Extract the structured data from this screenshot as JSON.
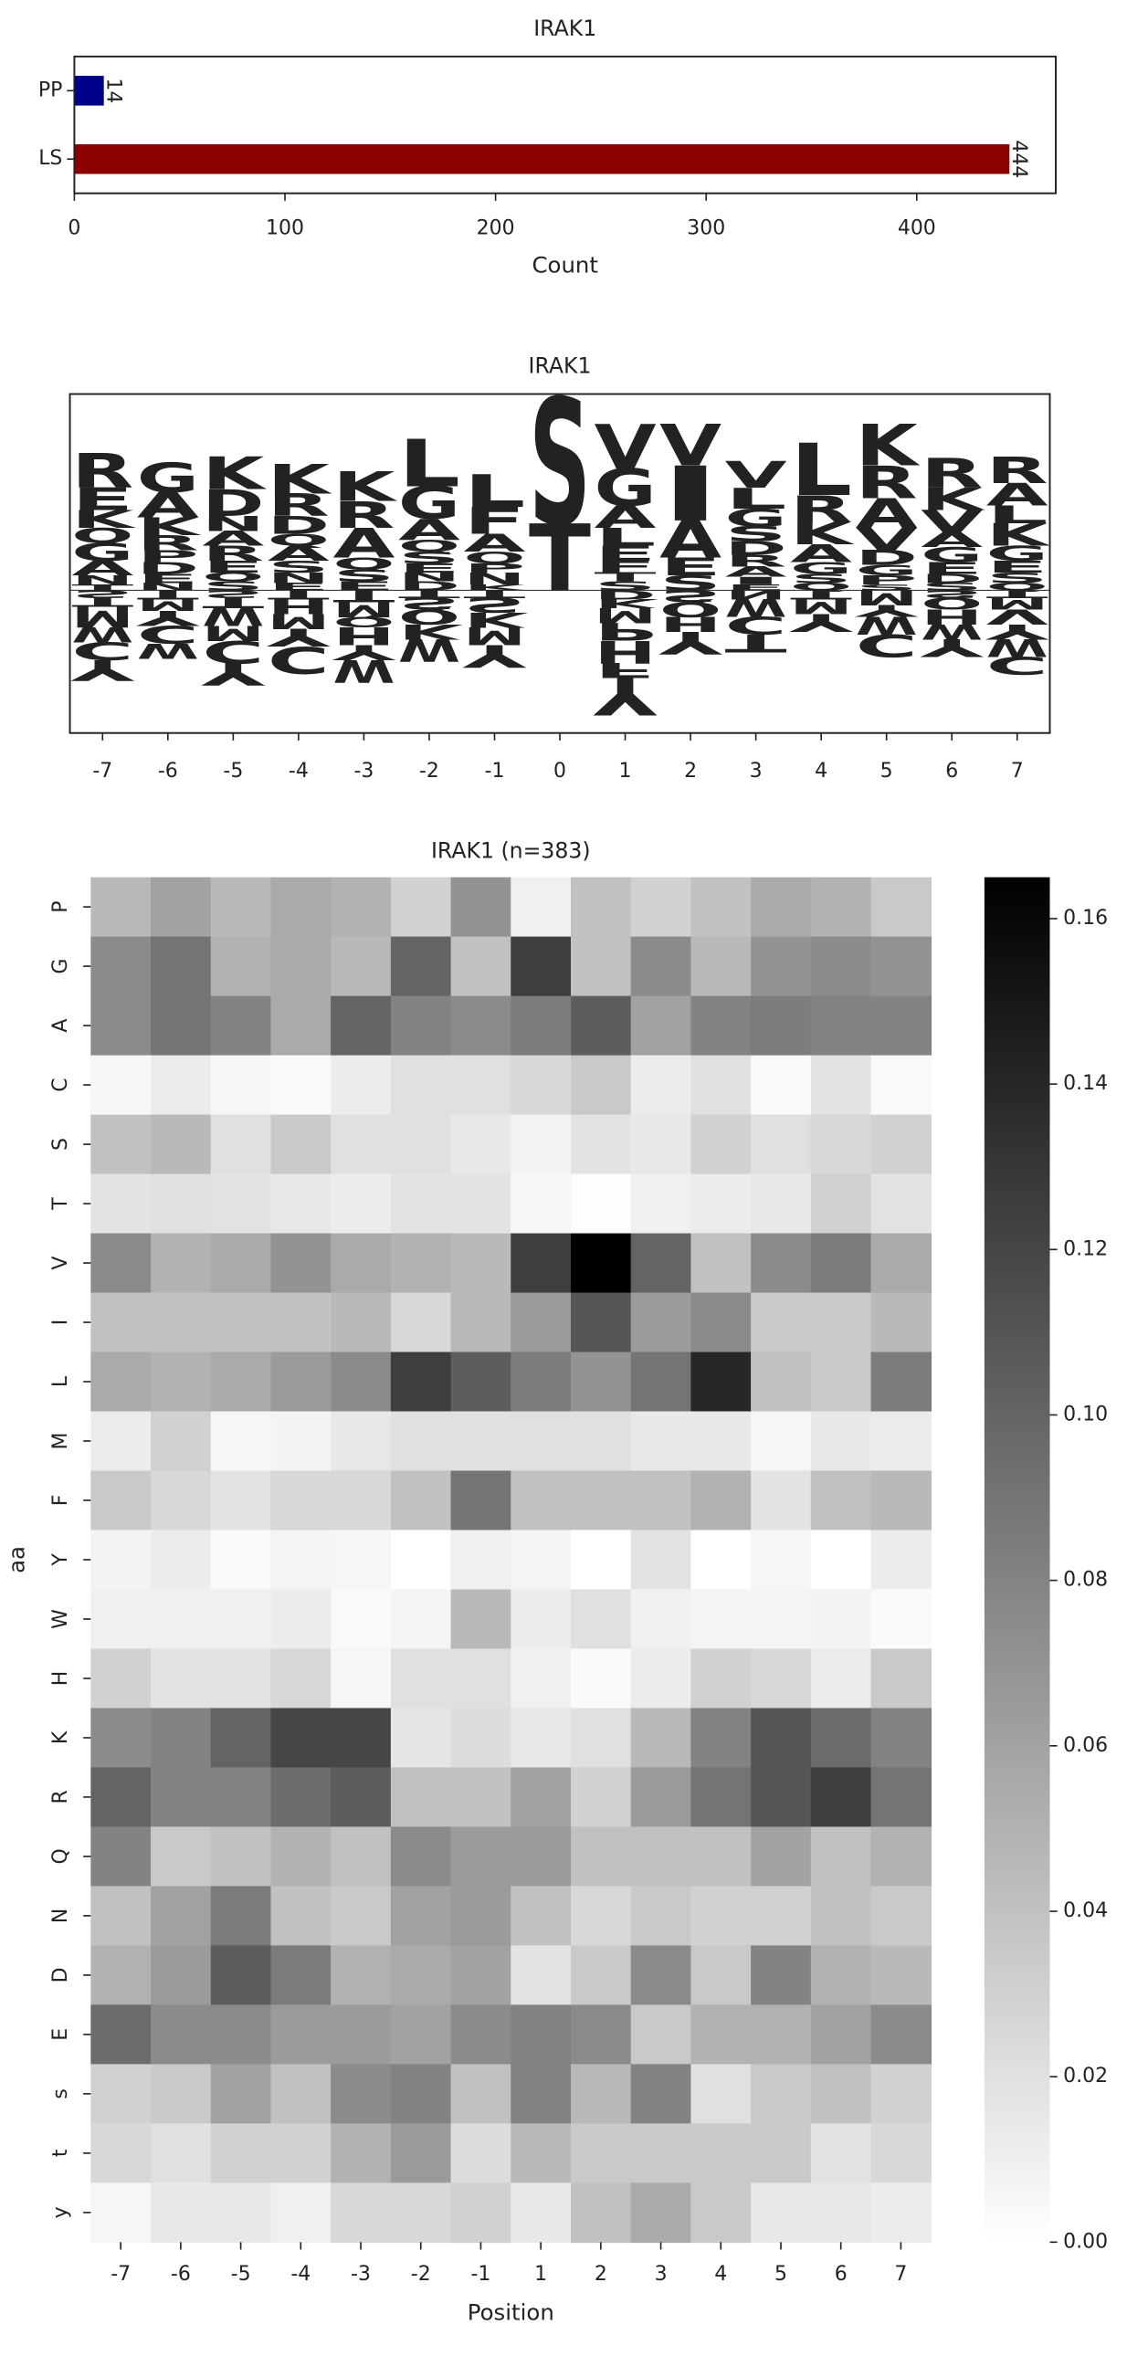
{
  "chart_data": [
    {
      "type": "bar",
      "orientation": "horizontal",
      "title": "IRAK1",
      "categories": [
        "PP",
        "LS"
      ],
      "values": [
        14,
        444
      ],
      "colors": [
        "#00008b",
        "#8b0000"
      ],
      "xlabel": "Count",
      "xlim": [
        0,
        466
      ],
      "xticks": [
        0,
        100,
        200,
        300,
        400
      ]
    },
    {
      "type": "logo",
      "title": "IRAK1",
      "categories": [
        -7,
        -6,
        -5,
        -4,
        -3,
        -2,
        -1,
        0,
        1,
        2,
        3,
        4,
        5,
        6,
        7
      ],
      "ylim": [
        -0.96,
        1.32
      ],
      "letter_colors": {
        "K": "#0000ff",
        "R": "#0000ff",
        "D": "#dc143c",
        "E": "#dc143c",
        "G": "#008000",
        "A": "#008000",
        "S": "#8b008b",
        "T": "#8b008b",
        "N": "#8b008b",
        "Q": "#8b008b",
        "H": "#8b008b",
        "V": "#daa520",
        "L": "#daa520",
        "I": "#daa520",
        "M": "#daa520",
        "F": "#daa520",
        "C": "#daa520",
        "W": "#8b4513",
        "Y": "#8b4513",
        "P": "#000000"
      },
      "stacks": [
        {
          "letters": [
            "T",
            "N",
            "A",
            "G",
            "Q",
            "K",
            "E",
            "R",
            "S",
            "T",
            "M",
            "W",
            "C",
            "Y"
          ],
          "heights": [
            0.04,
            0.06,
            0.1,
            0.12,
            0.1,
            0.12,
            0.15,
            0.23,
            -0.05,
            -0.06,
            -0.14,
            -0.1,
            -0.12,
            -0.14
          ]
        },
        {
          "letters": [
            "N",
            "E",
            "D",
            "P",
            "R",
            "K",
            "A",
            "G",
            "T",
            "M",
            "Y",
            "C",
            "W"
          ],
          "heights": [
            0.05,
            0.06,
            0.08,
            0.08,
            0.1,
            0.12,
            0.17,
            0.2,
            -0.06,
            -0.08,
            -0.1,
            -0.12,
            -0.1
          ]
        },
        {
          "letters": [
            "S",
            "Q",
            "E",
            "R",
            "A",
            "N",
            "D",
            "K",
            "S",
            "T",
            "W",
            "M",
            "C",
            "Y"
          ],
          "heights": [
            0.06,
            0.06,
            0.08,
            0.1,
            0.1,
            0.1,
            0.18,
            0.22,
            -0.05,
            -0.07,
            -0.12,
            -0.1,
            -0.15,
            -0.15
          ]
        },
        {
          "letters": [
            "E",
            "N",
            "S",
            "A",
            "Q",
            "D",
            "R",
            "K",
            "T",
            "H",
            "M",
            "Y",
            "C"
          ],
          "heights": [
            0.05,
            0.07,
            0.08,
            0.1,
            0.08,
            0.12,
            0.15,
            0.2,
            -0.06,
            -0.1,
            -0.1,
            -0.12,
            -0.18
          ]
        },
        {
          "letters": [
            "E",
            "S",
            "Q",
            "A",
            "R",
            "K",
            "T",
            "M",
            "Q",
            "H",
            "Y",
            "W"
          ],
          "heights": [
            0.06,
            0.08,
            0.08,
            0.2,
            0.18,
            0.2,
            -0.08,
            -0.1,
            -0.07,
            -0.12,
            -0.1,
            -0.15
          ]
        },
        {
          "letters": [
            "D",
            "N",
            "E",
            "S",
            "Q",
            "A",
            "G",
            "L",
            "T",
            "S",
            "Q",
            "K",
            "W"
          ],
          "heights": [
            0.06,
            0.06,
            0.06,
            0.08,
            0.08,
            0.14,
            0.22,
            0.32,
            -0.05,
            -0.08,
            -0.1,
            -0.1,
            -0.15
          ]
        },
        {
          "letters": [
            "K",
            "N",
            "P",
            "Q",
            "A",
            "F",
            "L",
            "T",
            "S",
            "K",
            "M",
            "Y"
          ],
          "heights": [
            0.04,
            0.08,
            0.06,
            0.08,
            0.12,
            0.18,
            0.22,
            -0.05,
            -0.1,
            -0.1,
            -0.12,
            -0.15
          ]
        },
        {
          "letters": [
            "T",
            "S"
          ],
          "heights": [
            0.45,
            0.85
          ]
        },
        {
          "letters": [
            "S",
            "T",
            "F",
            "E",
            "L",
            "A",
            "G",
            "V",
            "D",
            "K",
            "M",
            "P",
            "H",
            "F",
            "Y"
          ],
          "heights": [
            0.06,
            0.06,
            0.08,
            0.1,
            0.12,
            0.15,
            0.25,
            0.3,
            -0.06,
            -0.06,
            -0.1,
            -0.12,
            -0.15,
            -0.1,
            -0.25
          ]
        },
        {
          "letters": [
            "S",
            "E",
            "A",
            "I",
            "V",
            "S",
            "Q",
            "H",
            "Y"
          ],
          "heights": [
            0.1,
            0.12,
            0.25,
            0.37,
            0.28,
            -0.08,
            -0.1,
            -0.1,
            -0.15
          ]
        },
        {
          "letters": [
            "E",
            "I",
            "A",
            "R",
            "D",
            "S",
            "G",
            "L",
            "V",
            "N",
            "W",
            "C",
            "T"
          ],
          "heights": [
            0.04,
            0.05,
            0.07,
            0.08,
            0.09,
            0.1,
            0.12,
            0.14,
            0.18,
            -0.06,
            -0.12,
            -0.12,
            -0.12
          ]
        },
        {
          "letters": [
            "Q",
            "S",
            "G",
            "A",
            "K",
            "R",
            "L",
            "T",
            "M",
            "Y"
          ],
          "heights": [
            0.05,
            0.06,
            0.08,
            0.12,
            0.15,
            0.18,
            0.35,
            -0.06,
            -0.1,
            -0.12
          ]
        },
        {
          "letters": [
            "S",
            "P",
            "G",
            "D",
            "V",
            "A",
            "R",
            "K",
            "M",
            "Y",
            "W",
            "C"
          ],
          "heights": [
            0.04,
            0.06,
            0.07,
            0.1,
            0.15,
            0.2,
            0.22,
            0.28,
            -0.1,
            -0.08,
            -0.12,
            -0.15
          ]
        },
        {
          "letters": [
            "S",
            "D",
            "E",
            "G",
            "A",
            "V",
            "K",
            "R",
            "S",
            "Q",
            "H",
            "W",
            "Y"
          ],
          "heights": [
            0.05,
            0.06,
            0.08,
            0.1,
            0.1,
            0.15,
            0.15,
            0.2,
            -0.05,
            -0.08,
            -0.1,
            -0.1,
            -0.12
          ]
        },
        {
          "letters": [
            "Q",
            "S",
            "E",
            "G",
            "K",
            "L",
            "A",
            "R",
            "T",
            "M",
            "V",
            "Y",
            "W",
            "C"
          ],
          "heights": [
            0.05,
            0.07,
            0.08,
            0.1,
            0.15,
            0.12,
            0.15,
            0.18,
            -0.05,
            -0.08,
            -0.1,
            -0.1,
            -0.12,
            -0.12
          ]
        }
      ]
    },
    {
      "type": "heatmap",
      "title": "IRAK1 (n=383)",
      "xlabel": "Position",
      "ylabel": "aa",
      "x": [
        -7,
        -6,
        -5,
        -4,
        -3,
        -2,
        -1,
        1,
        2,
        3,
        4,
        5,
        6,
        7
      ],
      "y": [
        "P",
        "G",
        "A",
        "C",
        "S",
        "T",
        "V",
        "I",
        "L",
        "M",
        "F",
        "Y",
        "W",
        "H",
        "K",
        "R",
        "Q",
        "N",
        "D",
        "E",
        "s",
        "t",
        "y"
      ],
      "values": [
        [
          0.045,
          0.06,
          0.045,
          0.055,
          0.05,
          0.03,
          0.07,
          0.01,
          0.04,
          0.03,
          0.04,
          0.055,
          0.05,
          0.035
        ],
        [
          0.075,
          0.09,
          0.05,
          0.055,
          0.045,
          0.1,
          0.04,
          0.125,
          0.04,
          0.075,
          0.045,
          0.07,
          0.075,
          0.07
        ],
        [
          0.075,
          0.09,
          0.08,
          0.055,
          0.1,
          0.08,
          0.075,
          0.085,
          0.105,
          0.06,
          0.08,
          0.085,
          0.08,
          0.08
        ],
        [
          0.005,
          0.012,
          0.006,
          0.004,
          0.012,
          0.02,
          0.02,
          0.025,
          0.035,
          0.012,
          0.02,
          0.003,
          0.018,
          0.004
        ],
        [
          0.04,
          0.045,
          0.02,
          0.035,
          0.02,
          0.02,
          0.015,
          0.008,
          0.018,
          0.015,
          0.03,
          0.02,
          0.025,
          0.03
        ],
        [
          0.018,
          0.02,
          0.018,
          0.015,
          0.012,
          0.018,
          0.018,
          0.005,
          0.001,
          0.01,
          0.012,
          0.015,
          0.03,
          0.018
        ],
        [
          0.075,
          0.05,
          0.055,
          0.07,
          0.055,
          0.05,
          0.045,
          0.125,
          0.165,
          0.1,
          0.04,
          0.075,
          0.085,
          0.055
        ],
        [
          0.04,
          0.04,
          0.04,
          0.04,
          0.045,
          0.025,
          0.045,
          0.065,
          0.11,
          0.065,
          0.075,
          0.035,
          0.035,
          0.045
        ],
        [
          0.055,
          0.05,
          0.055,
          0.065,
          0.075,
          0.125,
          0.105,
          0.085,
          0.07,
          0.09,
          0.14,
          0.04,
          0.035,
          0.085
        ],
        [
          0.012,
          0.03,
          0.005,
          0.008,
          0.015,
          0.02,
          0.02,
          0.02,
          0.02,
          0.015,
          0.015,
          0.006,
          0.015,
          0.013
        ],
        [
          0.035,
          0.025,
          0.018,
          0.025,
          0.025,
          0.04,
          0.09,
          0.04,
          0.04,
          0.04,
          0.05,
          0.018,
          0.04,
          0.045
        ],
        [
          0.008,
          0.012,
          0.003,
          0.007,
          0.006,
          0,
          0.01,
          0.007,
          0,
          0.018,
          0,
          0.006,
          0,
          0.012
        ],
        [
          0.01,
          0.01,
          0.01,
          0.012,
          0.004,
          0.007,
          0.045,
          0.012,
          0.02,
          0.01,
          0.007,
          0.007,
          0.008,
          0.003
        ],
        [
          0.03,
          0.018,
          0.018,
          0.025,
          0.006,
          0.02,
          0.02,
          0.01,
          0.003,
          0.012,
          0.03,
          0.025,
          0.013,
          0.035
        ],
        [
          0.075,
          0.08,
          0.1,
          0.12,
          0.12,
          0.017,
          0.022,
          0.015,
          0.02,
          0.045,
          0.08,
          0.11,
          0.095,
          0.08
        ],
        [
          0.1,
          0.08,
          0.08,
          0.095,
          0.105,
          0.04,
          0.04,
          0.06,
          0.03,
          0.065,
          0.09,
          0.11,
          0.125,
          0.09
        ],
        [
          0.08,
          0.035,
          0.04,
          0.05,
          0.04,
          0.075,
          0.065,
          0.065,
          0.04,
          0.04,
          0.04,
          0.06,
          0.04,
          0.05
        ],
        [
          0.04,
          0.06,
          0.085,
          0.04,
          0.035,
          0.06,
          0.065,
          0.04,
          0.025,
          0.035,
          0.03,
          0.03,
          0.04,
          0.035
        ],
        [
          0.05,
          0.065,
          0.105,
          0.085,
          0.05,
          0.055,
          0.06,
          0.018,
          0.035,
          0.075,
          0.035,
          0.08,
          0.05,
          0.045
        ],
        [
          0.095,
          0.075,
          0.075,
          0.065,
          0.065,
          0.06,
          0.075,
          0.08,
          0.075,
          0.035,
          0.05,
          0.05,
          0.06,
          0.075
        ],
        [
          0.03,
          0.035,
          0.06,
          0.04,
          0.075,
          0.08,
          0.04,
          0.08,
          0.045,
          0.08,
          0.02,
          0.035,
          0.04,
          0.03
        ],
        [
          0.025,
          0.02,
          0.03,
          0.03,
          0.05,
          0.065,
          0.022,
          0.045,
          0.035,
          0.035,
          0.035,
          0.035,
          0.018,
          0.025
        ],
        [
          0.006,
          0.015,
          0.015,
          0.01,
          0.025,
          0.025,
          0.03,
          0.015,
          0.04,
          0.055,
          0.035,
          0.015,
          0.015,
          0.012
        ]
      ],
      "clim": [
        0,
        0.165
      ],
      "cticks": [
        {
          "value": 0,
          "label": "0.00"
        },
        {
          "value": 0.02,
          "label": "0.02"
        },
        {
          "value": 0.04,
          "label": "0.04"
        },
        {
          "value": 0.06,
          "label": "0.06"
        },
        {
          "value": 0.08,
          "label": "0.08"
        },
        {
          "value": 0.1,
          "label": "0.10"
        },
        {
          "value": 0.12,
          "label": "0.12"
        },
        {
          "value": 0.14,
          "label": "0.14"
        },
        {
          "value": 0.16,
          "label": "0.16"
        }
      ],
      "colors": [
        "#ffffff",
        "#000000"
      ]
    }
  ]
}
